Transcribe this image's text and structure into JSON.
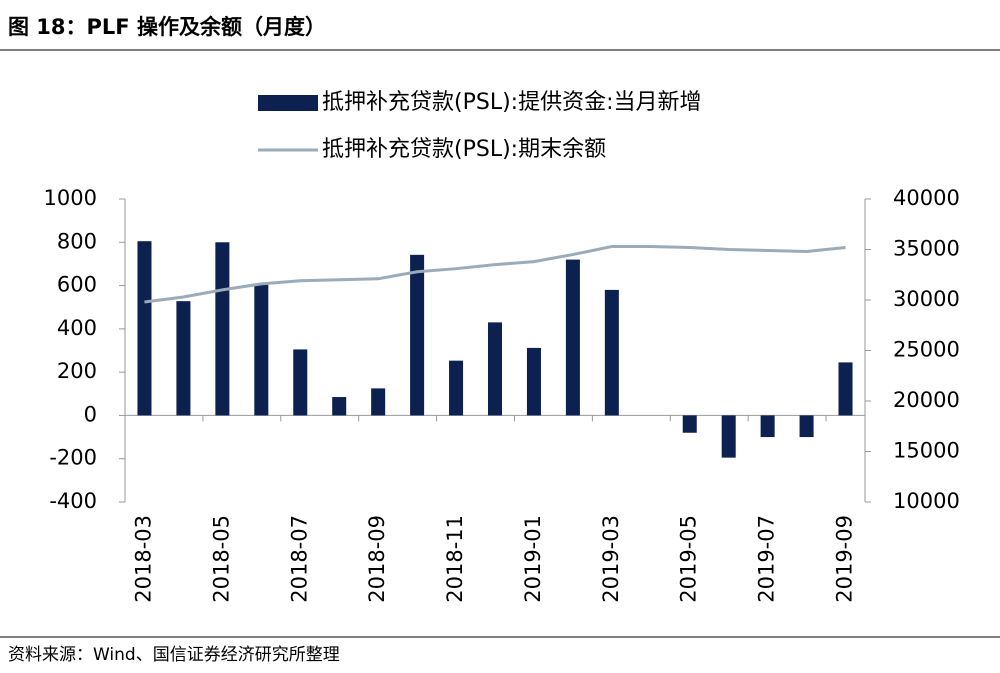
{
  "title": "图 18：PLF 操作及余额（月度）",
  "source": "资料来源：Wind、国信证券经济研究所整理",
  "chart_data": {
    "type": "bar_line",
    "categories": [
      "2018-03",
      null,
      "2018-05",
      null,
      "2018-07",
      null,
      "2018-09",
      null,
      "2018-11",
      null,
      "2019-01",
      null,
      "2019-03",
      null,
      "2019-05",
      null,
      "2019-07",
      null,
      "2019-09"
    ],
    "series": [
      {
        "name": "抵押补充贷款(PSL):提供资金:当月新增",
        "type": "bar",
        "color": "#0c2150",
        "values": [
          805,
          528,
          800,
          605,
          305,
          85,
          125,
          742,
          253,
          430,
          312,
          720,
          580,
          0,
          -80,
          -195,
          -100,
          -100,
          245
        ]
      },
      {
        "name": "抵押补充贷款(PSL):期末余额",
        "type": "line",
        "axis": "y2",
        "color": "#9aabb9",
        "values": [
          29800,
          30300,
          31000,
          31600,
          31900,
          32000,
          32100,
          32800,
          33100,
          33500,
          33800,
          34500,
          35300,
          35300,
          35200,
          35000,
          34900,
          34800,
          35200
        ]
      }
    ],
    "ylim": [
      -400,
      1000
    ],
    "yticks": [
      -400,
      -200,
      0,
      200,
      400,
      600,
      800,
      1000
    ],
    "y2lim": [
      10000,
      40000
    ],
    "y2ticks": [
      10000,
      15000,
      20000,
      25000,
      30000,
      35000,
      40000
    ]
  }
}
